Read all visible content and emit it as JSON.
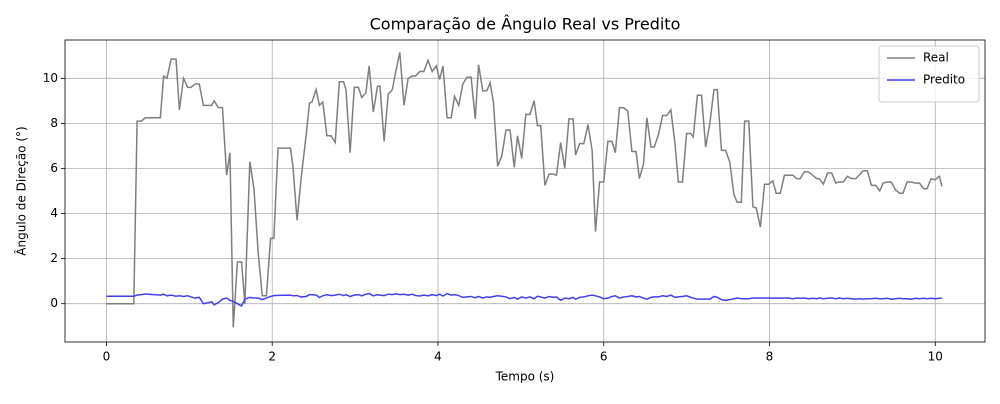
{
  "chart_data": {
    "type": "line",
    "title": "Comparação de Ângulo Real vs Predito",
    "x_label": "Tempo (s)",
    "y_label": "Ângulo de Direção (°)",
    "xlim": [
      -0.5,
      10.6
    ],
    "ylim": [
      -1.7,
      11.7
    ],
    "xticks": [
      0,
      2,
      4,
      6,
      8,
      10
    ],
    "yticks": [
      0,
      2,
      4,
      6,
      8,
      10
    ],
    "grid": true,
    "legend": "upper right",
    "x": [
      0,
      0.33,
      0.37,
      0.42,
      0.47,
      0.65,
      0.69,
      0.73,
      0.78,
      0.84,
      0.88,
      0.93,
      0.98,
      1.02,
      1.07,
      1.12,
      1.17,
      1.27,
      1.3,
      1.35,
      1.4,
      1.45,
      1.49,
      1.53,
      1.58,
      1.63,
      1.67,
      1.73,
      1.78,
      1.83,
      1.88,
      1.93,
      1.98,
      2.02,
      2.07,
      2.22,
      2.25,
      2.3,
      2.35,
      2.41,
      2.45,
      2.48,
      2.53,
      2.57,
      2.61,
      2.66,
      2.71,
      2.76,
      2.81,
      2.86,
      2.89,
      2.94,
      2.99,
      3.04,
      3.08,
      3.13,
      3.17,
      3.22,
      3.27,
      3.3,
      3.35,
      3.4,
      3.45,
      3.49,
      3.54,
      3.59,
      3.64,
      3.69,
      3.73,
      3.78,
      3.83,
      3.88,
      3.93,
      3.98,
      4.02,
      4.06,
      4.11,
      4.16,
      4.2,
      4.25,
      4.3,
      4.35,
      4.4,
      4.45,
      4.49,
      4.54,
      4.59,
      4.63,
      4.67,
      4.72,
      4.77,
      4.82,
      4.87,
      4.92,
      4.96,
      5.01,
      5.06,
      5.11,
      5.16,
      5.2,
      5.24,
      5.29,
      5.34,
      5.39,
      5.43,
      5.48,
      5.53,
      5.58,
      5.63,
      5.66,
      5.71,
      5.76,
      5.81,
      5.86,
      5.9,
      5.95,
      6.0,
      6.05,
      6.1,
      6.14,
      6.19,
      6.24,
      6.29,
      6.34,
      6.39,
      6.43,
      6.48,
      6.52,
      6.57,
      6.61,
      6.66,
      6.71,
      6.76,
      6.81,
      6.86,
      6.9,
      6.95,
      7.0,
      7.05,
      7.08,
      7.13,
      7.18,
      7.23,
      7.28,
      7.33,
      7.37,
      7.42,
      7.47,
      7.52,
      7.57,
      7.61,
      7.66,
      7.7,
      7.75,
      7.8,
      7.84,
      7.89,
      7.94,
      7.99,
      8.04,
      8.08,
      8.13,
      8.18,
      8.23,
      8.28,
      8.33,
      8.37,
      8.42,
      8.47,
      8.52,
      8.57,
      8.6,
      8.65,
      8.7,
      8.75,
      8.8,
      8.84,
      8.89,
      8.94,
      8.99,
      9.04,
      9.08,
      9.13,
      9.18,
      9.23,
      9.28,
      9.33,
      9.37,
      9.42,
      9.47,
      9.52,
      9.57,
      9.61,
      9.66,
      9.71,
      9.76,
      9.81,
      9.86,
      9.9,
      9.95,
      10.0,
      10.05,
      10.08
    ],
    "series": [
      {
        "name": "Real",
        "color": "#7f7f7f",
        "values": [
          0,
          0,
          8.1,
          8.1,
          8.25,
          8.25,
          10.1,
          10.0,
          10.85,
          10.85,
          8.6,
          10.0,
          9.6,
          9.6,
          9.75,
          9.75,
          8.8,
          8.8,
          9.0,
          8.7,
          8.7,
          5.7,
          6.7,
          -1.05,
          1.85,
          1.85,
          0,
          6.3,
          5.1,
          2.3,
          0.35,
          0.35,
          2.9,
          2.9,
          6.9,
          6.9,
          6.1,
          3.7,
          5.6,
          7.5,
          8.9,
          8.95,
          9.5,
          8.8,
          8.95,
          7.45,
          7.45,
          7.15,
          9.85,
          9.85,
          9.5,
          6.7,
          9.6,
          9.6,
          9.15,
          9.35,
          10.55,
          8.5,
          9.65,
          9.65,
          7.2,
          9.3,
          9.5,
          10.3,
          11.15,
          8.8,
          10.0,
          10.1,
          10.1,
          10.3,
          10.3,
          10.8,
          10.3,
          10.55,
          9.95,
          10.55,
          8.25,
          8.25,
          9.2,
          8.8,
          9.75,
          10.05,
          10.05,
          8.2,
          10.6,
          9.45,
          9.45,
          9.8,
          8.9,
          6.1,
          6.55,
          7.7,
          7.7,
          6.05,
          7.45,
          6.45,
          8.4,
          8.4,
          9.0,
          7.9,
          7.9,
          5.25,
          5.75,
          5.75,
          5.7,
          7.15,
          6.0,
          8.2,
          8.2,
          6.6,
          7.1,
          7.1,
          7.95,
          6.8,
          3.2,
          5.4,
          5.4,
          7.2,
          7.2,
          6.7,
          8.7,
          8.7,
          8.55,
          6.75,
          6.75,
          5.55,
          6.2,
          8.25,
          6.95,
          6.95,
          7.5,
          8.35,
          8.35,
          8.6,
          7.1,
          5.4,
          5.4,
          7.55,
          7.55,
          7.4,
          9.25,
          9.25,
          6.95,
          8.0,
          9.5,
          9.5,
          6.8,
          6.8,
          6.3,
          4.85,
          4.5,
          4.5,
          8.1,
          8.1,
          4.3,
          4.25,
          3.4,
          5.3,
          5.3,
          5.45,
          4.9,
          4.9,
          5.7,
          5.7,
          5.7,
          5.55,
          5.55,
          5.85,
          5.85,
          5.7,
          5.55,
          5.55,
          5.3,
          5.8,
          5.8,
          5.35,
          5.4,
          5.4,
          5.65,
          5.55,
          5.55,
          5.7,
          5.9,
          5.9,
          5.25,
          5.25,
          5.0,
          5.35,
          5.4,
          5.4,
          5.05,
          4.9,
          4.9,
          5.4,
          5.4,
          5.35,
          5.35,
          5.1,
          5.1,
          5.55,
          5.5,
          5.65,
          5.2
        ]
      },
      {
        "name": "Predito",
        "color": "#4040ee",
        "values": [
          0.33,
          0.33,
          0.38,
          0.4,
          0.43,
          0.38,
          0.42,
          0.35,
          0.38,
          0.33,
          0.35,
          0.32,
          0.35,
          0.3,
          0.25,
          0.28,
          0.0,
          0.08,
          -0.05,
          0.05,
          0.2,
          0.25,
          0.15,
          0.1,
          0.0,
          -0.1,
          0.2,
          0.28,
          0.25,
          0.25,
          0.18,
          0.25,
          0.32,
          0.36,
          0.37,
          0.38,
          0.35,
          0.36,
          0.3,
          0.32,
          0.4,
          0.4,
          0.38,
          0.28,
          0.35,
          0.4,
          0.36,
          0.38,
          0.42,
          0.36,
          0.4,
          0.32,
          0.38,
          0.4,
          0.35,
          0.42,
          0.45,
          0.35,
          0.4,
          0.38,
          0.36,
          0.42,
          0.4,
          0.44,
          0.4,
          0.42,
          0.38,
          0.42,
          0.36,
          0.34,
          0.38,
          0.35,
          0.4,
          0.36,
          0.42,
          0.34,
          0.45,
          0.38,
          0.4,
          0.36,
          0.28,
          0.3,
          0.32,
          0.26,
          0.32,
          0.25,
          0.3,
          0.28,
          0.32,
          0.35,
          0.33,
          0.3,
          0.22,
          0.28,
          0.2,
          0.3,
          0.25,
          0.3,
          0.22,
          0.33,
          0.3,
          0.25,
          0.32,
          0.28,
          0.3,
          0.15,
          0.25,
          0.22,
          0.28,
          0.2,
          0.28,
          0.3,
          0.35,
          0.38,
          0.35,
          0.3,
          0.22,
          0.25,
          0.32,
          0.35,
          0.25,
          0.3,
          0.32,
          0.35,
          0.3,
          0.32,
          0.25,
          0.2,
          0.28,
          0.3,
          0.3,
          0.35,
          0.32,
          0.38,
          0.28,
          0.3,
          0.32,
          0.35,
          0.28,
          0.25,
          0.2,
          0.2,
          0.2,
          0.2,
          0.32,
          0.28,
          0.18,
          0.15,
          0.18,
          0.22,
          0.25,
          0.22,
          0.22,
          0.22,
          0.25,
          0.25,
          0.25,
          0.25,
          0.25,
          0.24,
          0.25,
          0.24,
          0.25,
          0.25,
          0.22,
          0.25,
          0.24,
          0.25,
          0.22,
          0.24,
          0.22,
          0.25,
          0.22,
          0.24,
          0.25,
          0.22,
          0.25,
          0.22,
          0.24,
          0.22,
          0.2,
          0.22,
          0.2,
          0.22,
          0.22,
          0.24,
          0.22,
          0.22,
          0.24,
          0.2,
          0.22,
          0.24,
          0.22,
          0.22,
          0.2,
          0.24,
          0.22,
          0.24,
          0.22,
          0.24,
          0.22,
          0.24,
          0.24
        ]
      }
    ]
  }
}
